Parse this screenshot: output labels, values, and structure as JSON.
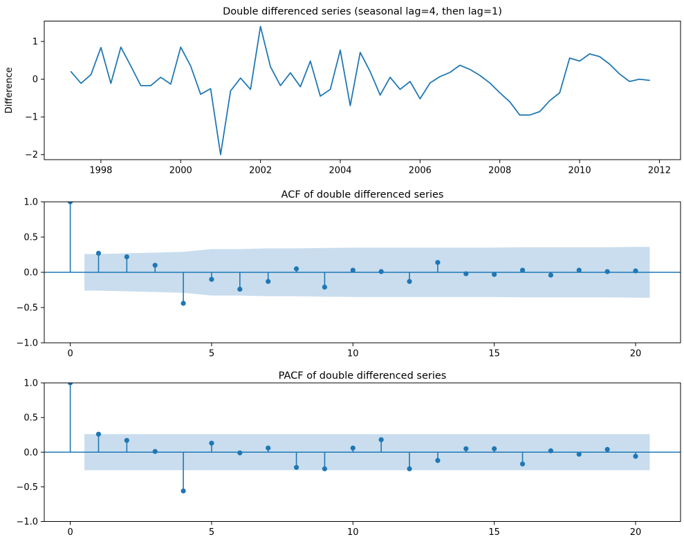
{
  "figure": {
    "background": "#ffffff",
    "accent_color": "#1f77b4",
    "band_color": "#c9ddee",
    "spine_color": "#000000",
    "text_color": "#000000"
  },
  "chart_data": [
    {
      "type": "line",
      "name": "double-differenced-series",
      "title": "Double differenced series (seasonal lag=4, then lag=1)",
      "xlabel": "",
      "ylabel": "Difference",
      "xlim": [
        1996.58,
        2012.53
      ],
      "ylim": [
        -2.133,
        1.541
      ],
      "grid": false,
      "legend": "none",
      "xticks": {
        "values": [
          1998,
          2000,
          2002,
          2004,
          2006,
          2008,
          2010,
          2012
        ],
        "labels": [
          "1998",
          "2000",
          "2002",
          "2004",
          "2006",
          "2008",
          "2010",
          "2012"
        ]
      },
      "yticks": {
        "values": [
          -2,
          -1,
          0,
          1
        ],
        "labels": [
          "−2",
          "−1",
          "0",
          "1"
        ]
      },
      "x": [
        1997.25,
        1997.5,
        1997.75,
        1998.0,
        1998.25,
        1998.5,
        1998.75,
        1999.0,
        1999.25,
        1999.5,
        1999.75,
        2000.0,
        2000.25,
        2000.5,
        2000.75,
        2001.0,
        2001.25,
        2001.5,
        2001.75,
        2002.0,
        2002.25,
        2002.5,
        2002.75,
        2003.0,
        2003.25,
        2003.5,
        2003.75,
        2004.0,
        2004.25,
        2004.5,
        2004.75,
        2005.0,
        2005.25,
        2005.5,
        2005.75,
        2006.0,
        2006.25,
        2006.5,
        2006.75,
        2007.0,
        2007.25,
        2007.5,
        2007.75,
        2008.0,
        2008.25,
        2008.5,
        2008.75,
        2009.0,
        2009.25,
        2009.5,
        2009.75,
        2010.0,
        2010.25,
        2010.5,
        2010.75,
        2011.0,
        2011.25,
        2011.5,
        2011.75
      ],
      "y": [
        0.2,
        -0.11,
        0.12,
        0.84,
        -0.11,
        0.85,
        0.35,
        -0.17,
        -0.17,
        0.05,
        -0.13,
        0.85,
        0.35,
        -0.4,
        -0.25,
        -2.0,
        -0.31,
        0.03,
        -0.27,
        1.4,
        0.33,
        -0.17,
        0.17,
        -0.2,
        0.48,
        -0.45,
        -0.27,
        0.77,
        -0.7,
        0.71,
        0.2,
        -0.42,
        0.05,
        -0.27,
        -0.06,
        -0.52,
        -0.1,
        0.07,
        0.18,
        0.37,
        0.26,
        0.1,
        -0.1,
        -0.36,
        -0.6,
        -0.95,
        -0.95,
        -0.86,
        -0.57,
        -0.36,
        0.56,
        0.48,
        0.67,
        0.6,
        0.4,
        0.14,
        -0.06,
        0.0,
        -0.03
      ]
    },
    {
      "type": "stem",
      "name": "acf",
      "title": "ACF of double differenced series",
      "xlabel": "",
      "ylabel": "",
      "xlim": [
        -0.92,
        21.59
      ],
      "ylim": [
        -1.0,
        1.0
      ],
      "grid": false,
      "legend": "none",
      "xticks": {
        "values": [
          0,
          5,
          10,
          15,
          20
        ],
        "labels": [
          "0",
          "5",
          "10",
          "15",
          "20"
        ]
      },
      "yticks": {
        "values": [
          -1.0,
          -0.5,
          0.0,
          0.5,
          1.0
        ],
        "labels": [
          "−1.0",
          "−0.5",
          "0.0",
          "0.5",
          "1.0"
        ]
      },
      "lags": [
        0,
        1,
        2,
        3,
        4,
        5,
        6,
        7,
        8,
        9,
        10,
        11,
        12,
        13,
        14,
        15,
        16,
        17,
        18,
        19,
        20
      ],
      "values": [
        1.0,
        0.27,
        0.22,
        0.1,
        -0.44,
        -0.1,
        -0.24,
        -0.13,
        0.05,
        -0.21,
        0.03,
        0.01,
        -0.13,
        0.14,
        -0.02,
        -0.03,
        0.03,
        -0.04,
        0.03,
        0.01,
        0.02
      ],
      "conf_band": {
        "x_start": 0.5,
        "x_end": 20.5,
        "upper_by_lag": [
          0.26,
          0.27,
          0.28,
          0.29,
          0.33,
          0.33,
          0.34,
          0.34,
          0.345,
          0.35,
          0.35,
          0.35,
          0.35,
          0.35,
          0.35,
          0.355,
          0.355,
          0.355,
          0.355,
          0.36
        ],
        "symmetric": true
      }
    },
    {
      "type": "stem",
      "name": "pacf",
      "title": "PACF of double differenced series",
      "xlabel": "",
      "ylabel": "",
      "xlim": [
        -0.92,
        21.59
      ],
      "ylim": [
        -1.0,
        1.0
      ],
      "grid": false,
      "legend": "none",
      "xticks": {
        "values": [
          0,
          5,
          10,
          15,
          20
        ],
        "labels": [
          "0",
          "5",
          "10",
          "15",
          "20"
        ]
      },
      "yticks": {
        "values": [
          -1.0,
          -0.5,
          0.0,
          0.5,
          1.0
        ],
        "labels": [
          "−1.0",
          "−0.5",
          "0.0",
          "0.5",
          "1.0"
        ]
      },
      "lags": [
        0,
        1,
        2,
        3,
        4,
        5,
        6,
        7,
        8,
        9,
        10,
        11,
        12,
        13,
        14,
        15,
        16,
        17,
        18,
        19,
        20
      ],
      "values": [
        1.0,
        0.26,
        0.17,
        0.01,
        -0.56,
        0.13,
        -0.01,
        0.06,
        -0.22,
        -0.24,
        0.06,
        0.18,
        -0.24,
        -0.12,
        0.05,
        0.05,
        -0.17,
        0.02,
        -0.03,
        0.04,
        -0.06
      ],
      "conf_band": {
        "x_start": 0.5,
        "x_end": 20.5,
        "upper_by_lag": [
          0.26,
          0.26,
          0.26,
          0.26,
          0.26,
          0.26,
          0.26,
          0.26,
          0.26,
          0.26,
          0.26,
          0.26,
          0.26,
          0.26,
          0.26,
          0.26,
          0.26,
          0.26,
          0.26,
          0.26
        ],
        "symmetric": true
      }
    }
  ]
}
